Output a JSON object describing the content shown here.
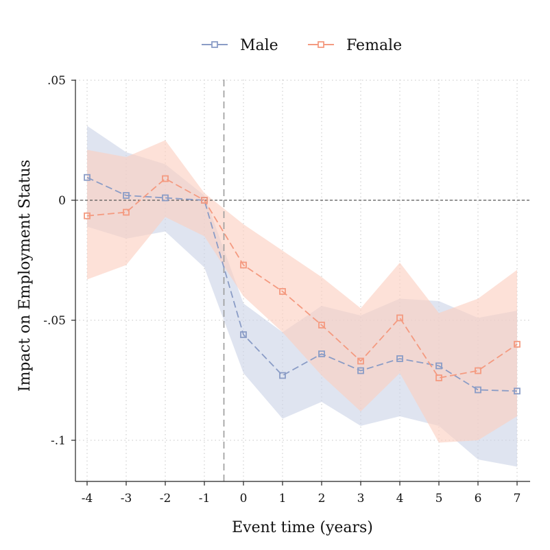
{
  "chart_data": {
    "type": "line",
    "title": "",
    "xlabel": "Event time (years)",
    "ylabel": "Impact on Employment Status",
    "x": [
      -4,
      -3,
      -2,
      -1,
      0,
      1,
      2,
      3,
      4,
      5,
      6,
      7
    ],
    "x_tick_labels": [
      "-4",
      "-3",
      "-2",
      "-1",
      "0",
      "1",
      "2",
      "3",
      "4",
      "5",
      "6",
      "7"
    ],
    "y_ticks": [
      0.05,
      0,
      -0.05,
      -0.1
    ],
    "y_tick_labels": [
      ".05",
      "0",
      "-.05",
      "-.1"
    ],
    "xlim": [
      -4,
      7
    ],
    "ylim": [
      -0.117,
      0.05
    ],
    "grid": true,
    "event_line_x": -0.5,
    "zero_line_y": 0,
    "legend_position": "top",
    "series": [
      {
        "name": "Male",
        "color": "#8a9cc6",
        "band_color": "#ccd3e6",
        "values": [
          0.0095,
          0.002,
          0.001,
          0.0,
          -0.056,
          -0.073,
          -0.064,
          -0.071,
          -0.066,
          -0.069,
          -0.079,
          -0.0795
        ],
        "ci_low": [
          -0.011,
          -0.016,
          -0.013,
          -0.028,
          -0.072,
          -0.091,
          -0.084,
          -0.094,
          -0.09,
          -0.094,
          -0.108,
          -0.111
        ],
        "ci_high": [
          0.031,
          0.02,
          0.015,
          0.002,
          -0.043,
          -0.055,
          -0.044,
          -0.048,
          -0.041,
          -0.042,
          -0.049,
          -0.046
        ]
      },
      {
        "name": "Female",
        "color": "#f49a80",
        "band_color": "#fbcfc0",
        "values": [
          -0.0065,
          -0.005,
          0.009,
          0.0,
          -0.027,
          -0.038,
          -0.052,
          -0.067,
          -0.049,
          -0.074,
          -0.071,
          -0.06
        ],
        "ci_low": [
          -0.033,
          -0.027,
          -0.007,
          -0.015,
          -0.04,
          -0.055,
          -0.073,
          -0.088,
          -0.072,
          -0.101,
          -0.1,
          -0.09
        ],
        "ci_high": [
          0.021,
          0.018,
          0.025,
          0.003,
          -0.01,
          -0.021,
          -0.032,
          -0.045,
          -0.026,
          -0.047,
          -0.041,
          -0.029
        ]
      }
    ]
  }
}
